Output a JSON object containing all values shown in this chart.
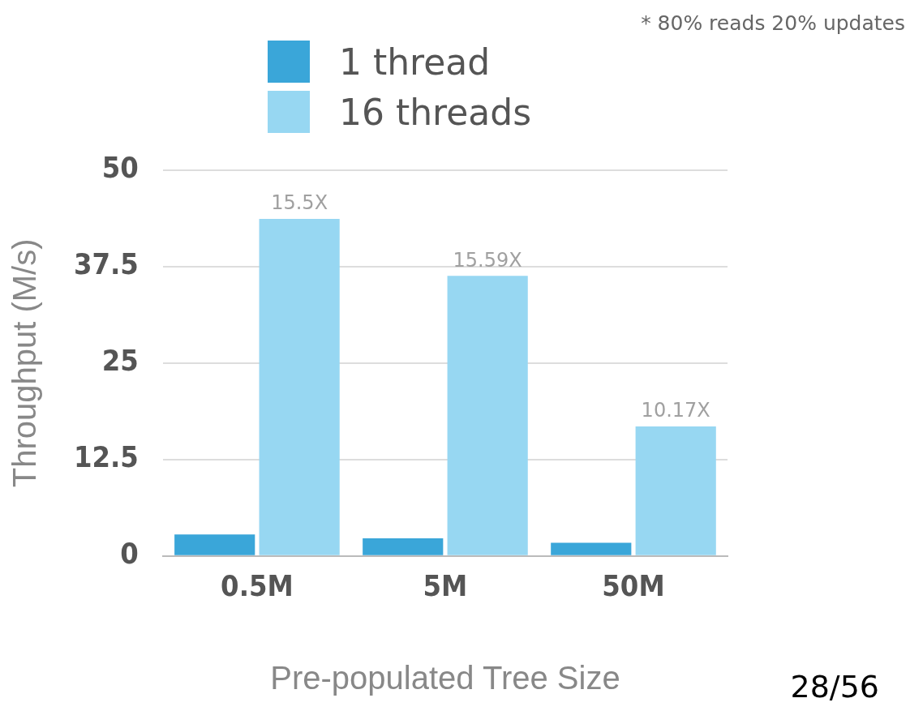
{
  "chart_data": {
    "type": "bar",
    "xlabel": "Pre-populated Tree Size",
    "ylabel": "Throughput (M/s)",
    "categories": [
      "0.5M",
      "5M",
      "50M"
    ],
    "series": [
      {
        "name": "1 thread",
        "color": "#3aa6d9",
        "values": [
          2.8,
          2.3,
          1.7
        ]
      },
      {
        "name": "16 threads",
        "color": "#97d7f2",
        "values": [
          43.7,
          36.3,
          16.8
        ]
      }
    ],
    "ylim": [
      0,
      50
    ],
    "yticks": [
      0,
      12.5,
      25,
      37.5,
      50
    ],
    "grid": "y",
    "legend": "top left",
    "annotations": [
      "* 80% reads 20% updates",
      "28/56",
      {
        "text": "15.5X",
        "x": "0.5M",
        "y": 43.7
      },
      {
        "text": "15.59X",
        "x": "5M",
        "y": 36.3
      },
      {
        "text": "10.17X",
        "x": "50M",
        "y": 16.8
      }
    ]
  }
}
